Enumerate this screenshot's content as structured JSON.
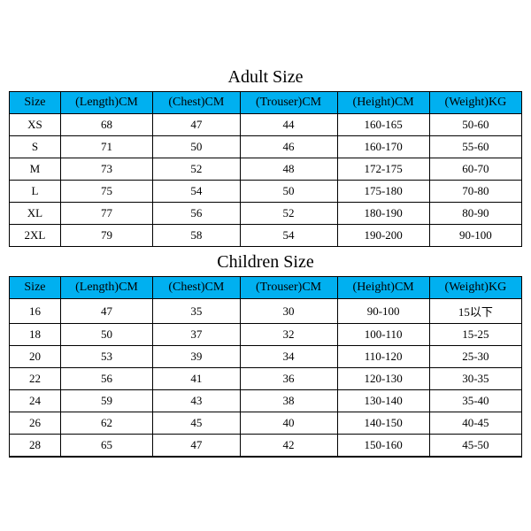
{
  "colors": {
    "header_bg": "#00b0f0",
    "border": "#000000",
    "background": "#ffffff",
    "text": "#000000"
  },
  "adult": {
    "title": "Adult Size",
    "columns": [
      "Size",
      "(Length)CM",
      "(Chest)CM",
      "(Trouser)CM",
      "(Height)CM",
      "(Weight)KG"
    ],
    "rows": [
      [
        "XS",
        "68",
        "47",
        "44",
        "160-165",
        "50-60"
      ],
      [
        "S",
        "71",
        "50",
        "46",
        "160-170",
        "55-60"
      ],
      [
        "M",
        "73",
        "52",
        "48",
        "172-175",
        "60-70"
      ],
      [
        "L",
        "75",
        "54",
        "50",
        "175-180",
        "70-80"
      ],
      [
        "XL",
        "77",
        "56",
        "52",
        "180-190",
        "80-90"
      ],
      [
        "2XL",
        "79",
        "58",
        "54",
        "190-200",
        "90-100"
      ]
    ]
  },
  "children": {
    "title": "Children Size",
    "columns": [
      "Size",
      "(Length)CM",
      "(Chest)CM",
      "(Trouser)CM",
      "(Height)CM",
      "(Weight)KG"
    ],
    "rows": [
      [
        "16",
        "47",
        "35",
        "30",
        "90-100",
        "15以下"
      ],
      [
        "18",
        "50",
        "37",
        "32",
        "100-110",
        "15-25"
      ],
      [
        "20",
        "53",
        "39",
        "34",
        "110-120",
        "25-30"
      ],
      [
        "22",
        "56",
        "41",
        "36",
        "120-130",
        "30-35"
      ],
      [
        "24",
        "59",
        "43",
        "38",
        "130-140",
        "35-40"
      ],
      [
        "26",
        "62",
        "45",
        "40",
        "140-150",
        "40-45"
      ],
      [
        "28",
        "65",
        "47",
        "42",
        "150-160",
        "45-50"
      ]
    ]
  }
}
